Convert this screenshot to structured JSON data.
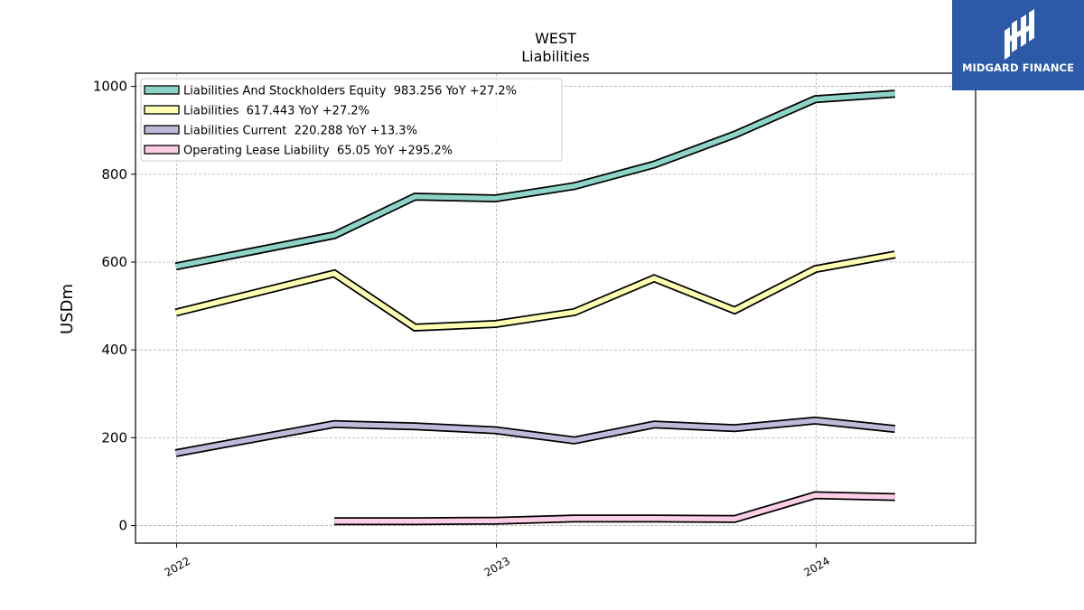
{
  "chart_data": {
    "type": "line",
    "title": "WEST",
    "subtitle": "Liabilities",
    "ylabel": "USDm",
    "xlabel": "",
    "xlim": [
      "2021-11-15",
      "2024-07-01"
    ],
    "ylim": [
      -40,
      1030
    ],
    "x_ticks": [
      "2022",
      "2023",
      "2024"
    ],
    "y_ticks": [
      "0",
      "200",
      "400",
      "600",
      "800",
      "1000"
    ],
    "grid": true,
    "legend_position": "top-left",
    "series": [
      {
        "name": "Liabilities And Stockholders Equity  983.256 YoY +27.2%",
        "color": "#8dd3c7",
        "x": [
          "2021-12-31",
          "2022-06-30",
          "2022-09-30",
          "2022-12-31",
          "2023-03-31",
          "2023-06-30",
          "2023-09-30",
          "2023-12-31",
          "2024-03-31"
        ],
        "y": [
          590,
          661,
          749,
          745,
          773,
          822,
          890,
          971,
          983
        ]
      },
      {
        "name": "Liabilities  617.443 YoY +27.2%",
        "color": "#ffffb3",
        "x": [
          "2021-12-31",
          "2022-06-30",
          "2022-09-30",
          "2022-12-31",
          "2023-03-31",
          "2023-06-30",
          "2023-09-30",
          "2023-12-31",
          "2024-03-31"
        ],
        "y": [
          485,
          574,
          451,
          459,
          486,
          563,
          490,
          584,
          617
        ]
      },
      {
        "name": "Liabilities Current  220.288 YoY +13.3%",
        "color": "#bebada",
        "x": [
          "2021-12-31",
          "2022-06-30",
          "2022-09-30",
          "2022-12-31",
          "2023-03-31",
          "2023-06-30",
          "2023-09-30",
          "2023-12-31",
          "2024-03-31"
        ],
        "y": [
          165,
          231,
          226,
          217,
          194,
          230,
          222,
          239,
          220
        ]
      },
      {
        "name": "Operating Lease Liability  65.05 YoY +295.2%",
        "color": "#fccde5",
        "x": [
          "2022-06-30",
          "2022-09-30",
          "2022-12-31",
          "2023-03-31",
          "2023-06-30",
          "2023-09-30",
          "2023-12-31",
          "2024-03-31"
        ],
        "y": [
          10,
          10,
          11,
          16,
          16,
          15,
          69,
          65
        ]
      }
    ]
  },
  "logo": {
    "text": "MIDGARD FINANCE",
    "bg_color": "#2c5aa8"
  }
}
